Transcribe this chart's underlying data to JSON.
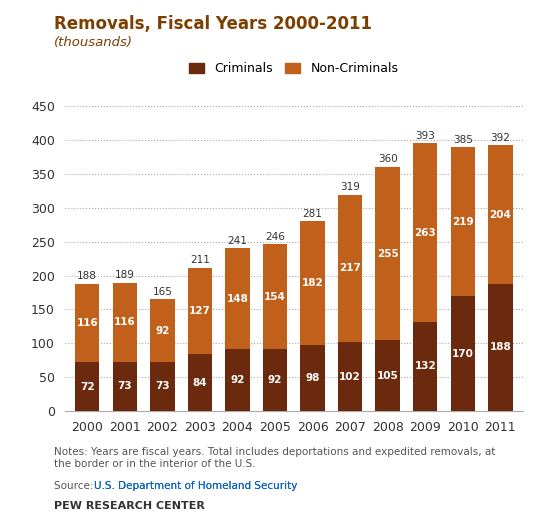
{
  "years": [
    "2000",
    "2001",
    "2002",
    "2003",
    "2004",
    "2005",
    "2006",
    "2007",
    "2008",
    "2009",
    "2010",
    "2011"
  ],
  "criminals": [
    72,
    73,
    73,
    84,
    92,
    92,
    98,
    102,
    105,
    132,
    170,
    188
  ],
  "non_criminals": [
    116,
    116,
    92,
    127,
    148,
    154,
    182,
    217,
    255,
    263,
    219,
    204
  ],
  "totals": [
    188,
    189,
    165,
    211,
    241,
    246,
    281,
    319,
    360,
    393,
    385,
    392
  ],
  "criminals_color": "#6B2A0E",
  "non_criminals_color": "#C0601A",
  "title": "Removals, Fiscal Years 2000-2011",
  "subtitle": "(thousands)",
  "ylabel": "",
  "xlabel": "",
  "ylim": [
    0,
    470
  ],
  "yticks": [
    0,
    50,
    100,
    150,
    200,
    250,
    300,
    350,
    400,
    450
  ],
  "notes": "Notes: Years are fiscal years. Total includes deportations and expedited removals, at\nthe border or in the interior of the U.S.",
  "source_text": "Source: ",
  "source_link": "U.S. Department of Homeland Security",
  "footer": "PEW RESEARCH CENTER",
  "title_color": "#7B3F00",
  "subtitle_color": "#7B3F00",
  "text_color": "#555555",
  "bg_color": "#FFFFFF"
}
